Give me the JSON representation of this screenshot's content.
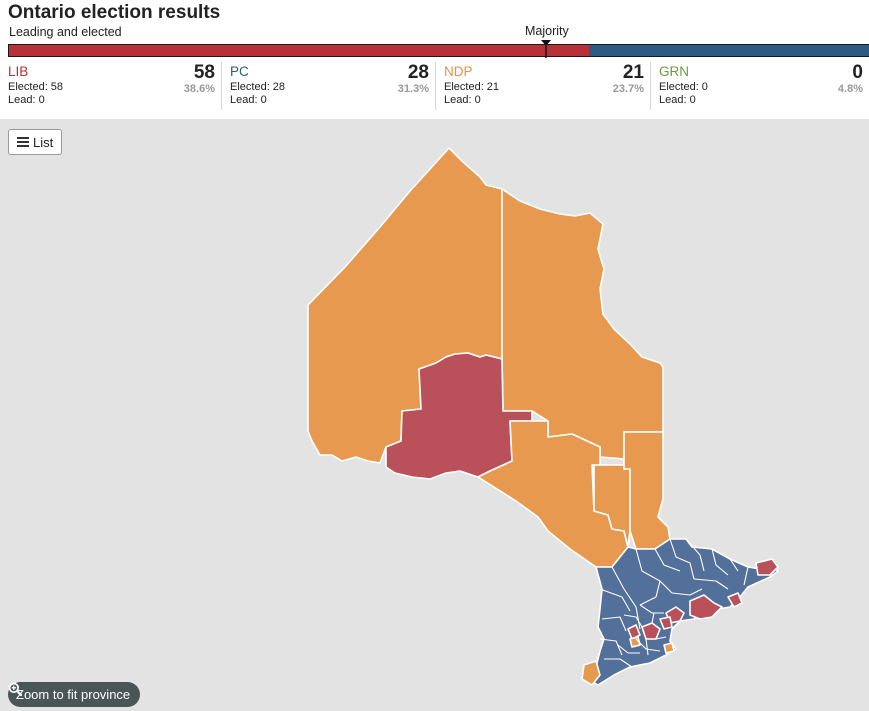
{
  "header": {
    "title": "Ontario election results",
    "subtitle": "Leading and elected",
    "majority_label": "Majority"
  },
  "seat_bar": {
    "segments": [
      {
        "party": "LIB",
        "fraction": 0.674,
        "color": "#b63238"
      },
      {
        "party": "PC",
        "fraction": 0.326,
        "color": "#2e5a86"
      }
    ],
    "majority_fraction": 0.624
  },
  "parties": [
    {
      "name": "LIB",
      "seats": "58",
      "elected": "Elected: 58",
      "lead": "Lead: 0",
      "pct": "38.6%",
      "color": "#b63238"
    },
    {
      "name": "PC",
      "seats": "28",
      "elected": "Elected: 28",
      "lead": "Lead: 0",
      "pct": "31.3%",
      "color": "#2e5a86"
    },
    {
      "name": "NDP",
      "seats": "21",
      "elected": "Elected: 21",
      "lead": "Lead: 0",
      "pct": "23.7%",
      "color": "#e8904a"
    },
    {
      "name": "GRN",
      "seats": "0",
      "elected": "Elected: 0",
      "lead": "Lead: 0",
      "pct": "4.8%",
      "color": "#6e9b3b"
    }
  ],
  "map": {
    "colors": {
      "ndp": "#e79a4f",
      "lib": "#b9505a",
      "pc": "#52709a",
      "background": "#e3e3e3"
    }
  },
  "controls": {
    "list_label": "List",
    "zoom_label": "Zoom to fit province"
  }
}
